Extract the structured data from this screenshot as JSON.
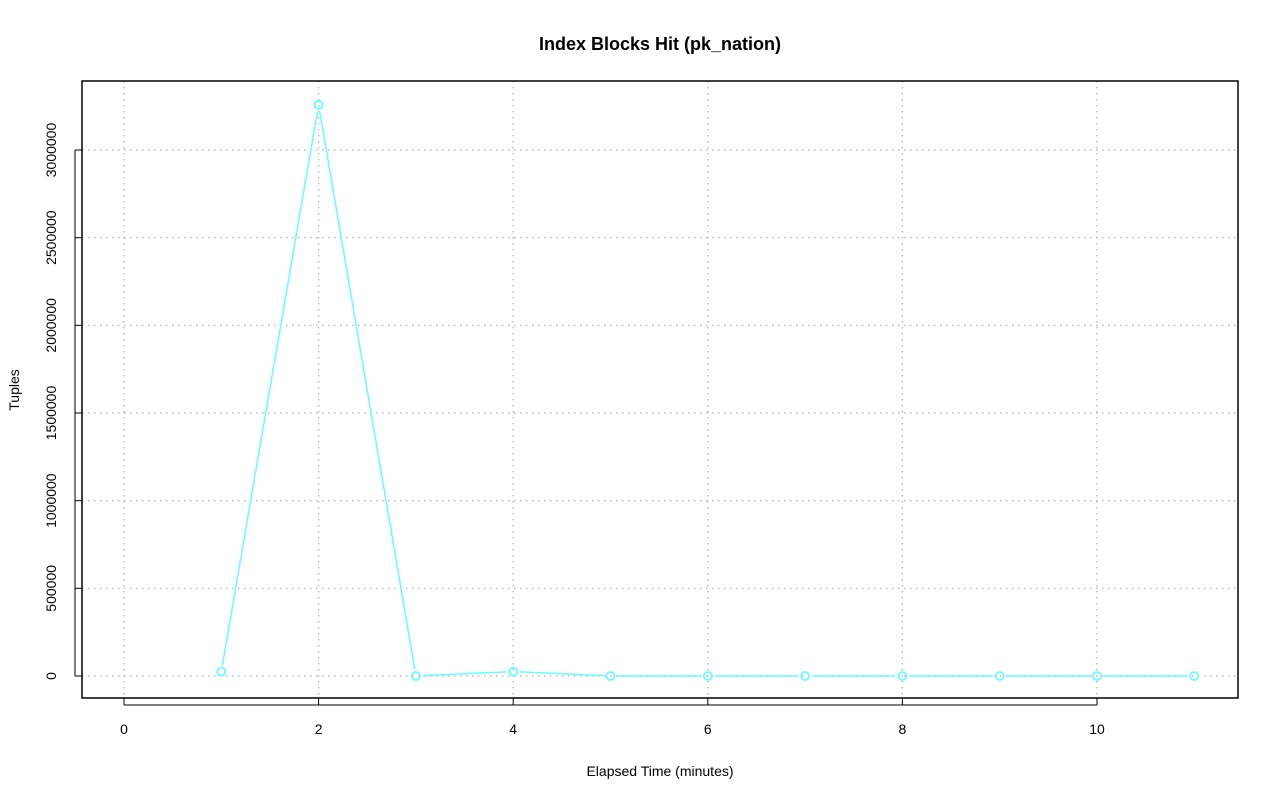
{
  "chart_data": {
    "type": "line",
    "title": "Index Blocks Hit (pk_nation)",
    "xlabel": "Elapsed Time (minutes)",
    "ylabel": "Tuples",
    "xlim": [
      0,
      11
    ],
    "ylim": [
      0,
      3257000
    ],
    "x_ticks": [
      0,
      2,
      4,
      6,
      8,
      10
    ],
    "y_ticks": [
      0,
      500000,
      1000000,
      1500000,
      2000000,
      2500000,
      3000000
    ],
    "grid": true,
    "series": [
      {
        "color": "#66FFFF",
        "marker": "open-circle",
        "x": [
          1,
          2,
          3,
          4,
          5,
          6,
          7,
          8,
          9,
          10,
          11
        ],
        "y": [
          25000,
          3257000,
          0,
          25000,
          0,
          0,
          0,
          0,
          0,
          0,
          0
        ]
      }
    ]
  }
}
